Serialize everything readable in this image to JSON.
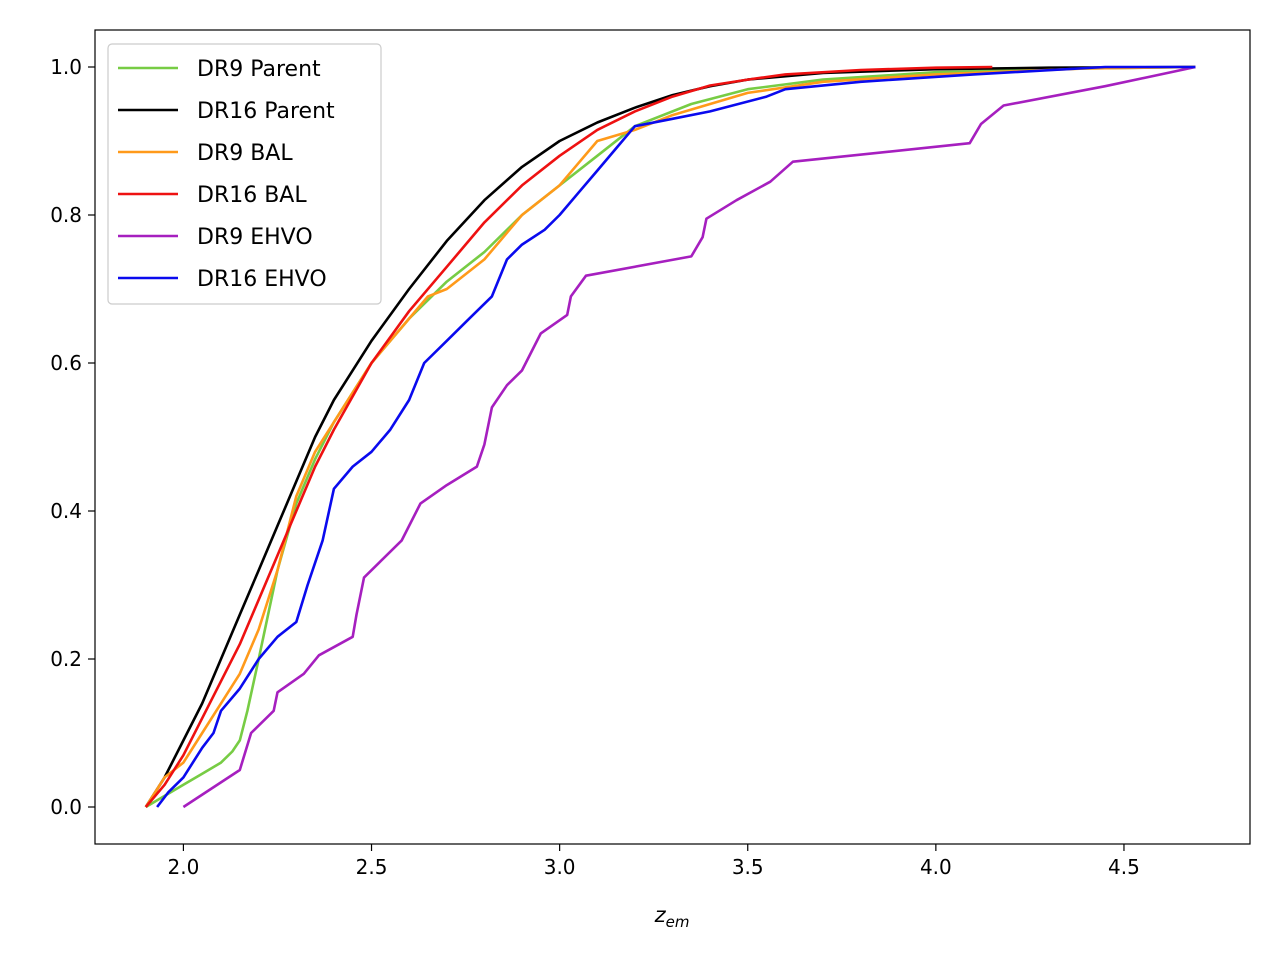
{
  "chart_data": {
    "type": "line",
    "title": "",
    "xlabel": "z",
    "xlabel_sub": "em",
    "ylabel": "",
    "xlim": [
      1.765,
      4.835
    ],
    "ylim": [
      -0.05,
      1.05
    ],
    "xticks": [
      2.0,
      2.5,
      3.0,
      3.5,
      4.0,
      4.5
    ],
    "yticks": [
      0.0,
      0.2,
      0.4,
      0.6,
      0.8,
      1.0
    ],
    "xtick_labels": [
      "2.0",
      "2.5",
      "3.0",
      "3.5",
      "4.0",
      "4.5"
    ],
    "ytick_labels": [
      "0.0",
      "0.2",
      "0.4",
      "0.6",
      "0.8",
      "1.0"
    ],
    "grid": false,
    "legend_position": "top-left",
    "series": [
      {
        "name": "DR9 Parent",
        "color": "#77cc44",
        "x": [
          1.9,
          2.0,
          2.05,
          2.1,
          2.13,
          2.15,
          2.17,
          2.2,
          2.25,
          2.3,
          2.35,
          2.4,
          2.45,
          2.5,
          2.6,
          2.7,
          2.8,
          2.9,
          3.0,
          3.1,
          3.2,
          3.35,
          3.5,
          3.7,
          4.0,
          4.4,
          4.69
        ],
        "y": [
          0.0,
          0.03,
          0.045,
          0.06,
          0.075,
          0.09,
          0.13,
          0.2,
          0.32,
          0.41,
          0.47,
          0.52,
          0.56,
          0.6,
          0.66,
          0.71,
          0.75,
          0.8,
          0.84,
          0.88,
          0.92,
          0.95,
          0.97,
          0.983,
          0.993,
          0.998,
          1.0
        ]
      },
      {
        "name": "DR16 Parent",
        "color": "#000000",
        "x": [
          1.9,
          1.95,
          2.0,
          2.05,
          2.1,
          2.15,
          2.2,
          2.25,
          2.3,
          2.35,
          2.4,
          2.5,
          2.6,
          2.7,
          2.8,
          2.9,
          3.0,
          3.1,
          3.2,
          3.3,
          3.4,
          3.5,
          3.7,
          4.0,
          4.3,
          4.69
        ],
        "y": [
          0.0,
          0.04,
          0.09,
          0.14,
          0.2,
          0.26,
          0.32,
          0.38,
          0.44,
          0.5,
          0.55,
          0.63,
          0.7,
          0.765,
          0.82,
          0.865,
          0.9,
          0.925,
          0.945,
          0.962,
          0.974,
          0.983,
          0.992,
          0.997,
          0.999,
          1.0
        ]
      },
      {
        "name": "DR9 BAL",
        "color": "#ff9a1a",
        "x": [
          1.9,
          1.95,
          2.0,
          2.05,
          2.1,
          2.15,
          2.2,
          2.25,
          2.3,
          2.35,
          2.4,
          2.5,
          2.6,
          2.65,
          2.7,
          2.8,
          2.9,
          3.0,
          3.05,
          3.1,
          3.2,
          3.3,
          3.4,
          3.5,
          3.7,
          4.0,
          4.4,
          4.69
        ],
        "y": [
          0.0,
          0.04,
          0.06,
          0.1,
          0.14,
          0.18,
          0.24,
          0.32,
          0.42,
          0.48,
          0.52,
          0.6,
          0.66,
          0.69,
          0.7,
          0.74,
          0.8,
          0.84,
          0.87,
          0.9,
          0.915,
          0.935,
          0.95,
          0.965,
          0.98,
          0.99,
          0.998,
          1.0
        ]
      },
      {
        "name": "DR16 BAL",
        "color": "#ee1111",
        "x": [
          1.9,
          1.95,
          2.0,
          2.05,
          2.1,
          2.15,
          2.2,
          2.25,
          2.3,
          2.35,
          2.4,
          2.5,
          2.6,
          2.7,
          2.8,
          2.9,
          3.0,
          3.1,
          3.2,
          3.3,
          3.4,
          3.5,
          3.6,
          3.8,
          4.0,
          4.15
        ],
        "y": [
          0.0,
          0.03,
          0.07,
          0.12,
          0.17,
          0.22,
          0.28,
          0.34,
          0.4,
          0.46,
          0.51,
          0.6,
          0.67,
          0.73,
          0.79,
          0.84,
          0.88,
          0.915,
          0.94,
          0.96,
          0.975,
          0.983,
          0.99,
          0.996,
          0.999,
          1.0
        ]
      },
      {
        "name": "DR9 EHVO",
        "color": "#a61fbf",
        "x": [
          2.0,
          2.15,
          2.18,
          2.24,
          2.25,
          2.32,
          2.36,
          2.45,
          2.46,
          2.48,
          2.52,
          2.58,
          2.63,
          2.7,
          2.78,
          2.8,
          2.82,
          2.86,
          2.9,
          2.95,
          3.02,
          3.03,
          3.07,
          3.35,
          3.38,
          3.39,
          3.47,
          3.56,
          3.62,
          4.09,
          4.12,
          4.18,
          4.45,
          4.69
        ],
        "y": [
          0.0,
          0.05,
          0.1,
          0.13,
          0.155,
          0.18,
          0.205,
          0.23,
          0.26,
          0.31,
          0.33,
          0.36,
          0.41,
          0.435,
          0.46,
          0.49,
          0.54,
          0.57,
          0.59,
          0.64,
          0.665,
          0.69,
          0.718,
          0.744,
          0.77,
          0.795,
          0.82,
          0.845,
          0.872,
          0.897,
          0.923,
          0.948,
          0.974,
          1.0
        ]
      },
      {
        "name": "DR16 EHVO",
        "color": "#0a0aee",
        "x": [
          1.93,
          1.96,
          2.0,
          2.05,
          2.08,
          2.1,
          2.15,
          2.2,
          2.25,
          2.3,
          2.33,
          2.37,
          2.4,
          2.45,
          2.5,
          2.55,
          2.6,
          2.64,
          2.7,
          2.76,
          2.82,
          2.86,
          2.9,
          2.96,
          3.0,
          3.05,
          3.1,
          3.15,
          3.2,
          3.3,
          3.4,
          3.55,
          3.6,
          3.8,
          4.1,
          4.45,
          4.69
        ],
        "y": [
          0.0,
          0.02,
          0.04,
          0.08,
          0.1,
          0.13,
          0.16,
          0.2,
          0.23,
          0.25,
          0.3,
          0.36,
          0.43,
          0.46,
          0.48,
          0.51,
          0.55,
          0.6,
          0.63,
          0.66,
          0.69,
          0.74,
          0.76,
          0.78,
          0.8,
          0.83,
          0.86,
          0.89,
          0.92,
          0.93,
          0.94,
          0.96,
          0.97,
          0.98,
          0.99,
          1.0,
          1.0
        ]
      }
    ]
  }
}
